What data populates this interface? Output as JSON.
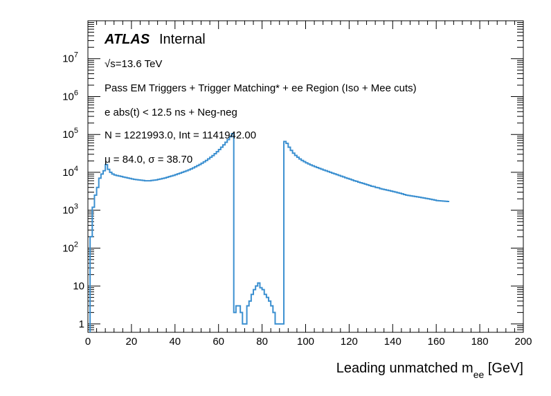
{
  "chart_data": {
    "type": "histogram-step",
    "xlabel_main": "Leading unmatched m",
    "xlabel_sub": "ee",
    "xlabel_unit": " [GeV]",
    "xlim": [
      0,
      200
    ],
    "ylim": [
      0.6,
      100000000
    ],
    "yscale": "log",
    "grid": false,
    "legend": "none",
    "x_ticks": [
      "0",
      "20",
      "40",
      "60",
      "80",
      "100",
      "120",
      "140",
      "160",
      "180",
      "200"
    ],
    "y_ticks": [
      {
        "base": "1",
        "exp": ""
      },
      {
        "base": "10",
        "exp": ""
      },
      {
        "base": "10",
        "exp": "2"
      },
      {
        "base": "10",
        "exp": "3"
      },
      {
        "base": "10",
        "exp": "4"
      },
      {
        "base": "10",
        "exp": "5"
      },
      {
        "base": "10",
        "exp": "6"
      },
      {
        "base": "10",
        "exp": "7"
      }
    ],
    "annotations": {
      "atlas": "ATLAS",
      "internal": "Internal",
      "sqrt": "√s=13.6 TeV",
      "selection": "Pass EM Triggers + Trigger Matching* + ee Region (Iso + Mee cuts)",
      "timing": "e abs(t) < 12.5 ns + Neg-neg",
      "counts": "N = 1221993.0, Int  = 1141942.00",
      "stats": "μ = 84.0, σ = 38.70"
    },
    "series": [
      {
        "color": "#3a8fd0",
        "bin_width": 1,
        "x_start": 1,
        "values": [
          200,
          1200,
          2500,
          4000,
          7000,
          9000,
          11000,
          16000,
          12000,
          10000,
          9000,
          8500,
          8200,
          8000,
          7800,
          7500,
          7300,
          7100,
          6900,
          6700,
          6500,
          6400,
          6300,
          6200,
          6100,
          6000,
          6000,
          6000,
          6100,
          6200,
          6300,
          6500,
          6700,
          6900,
          7100,
          7400,
          7700,
          8000,
          8300,
          8700,
          9100,
          9500,
          10000,
          10500,
          11000,
          11600,
          12300,
          13100,
          14000,
          15000,
          16100,
          17400,
          18900,
          20600,
          22600,
          25000,
          27700,
          31000,
          35000,
          40000,
          46000,
          53000,
          62000,
          73000,
          87000,
          105000,
          2,
          3,
          3,
          2,
          1,
          1,
          3,
          4,
          6,
          8,
          10,
          12,
          9,
          8,
          6,
          5,
          4,
          3,
          2,
          1,
          1,
          1,
          1,
          65000,
          58000,
          46000,
          38000,
          32000,
          28000,
          25000,
          22500,
          20600,
          19100,
          17800,
          16700,
          15700,
          14900,
          14100,
          13400,
          12700,
          12100,
          11500,
          11000,
          10500,
          10000,
          9500,
          9100,
          8700,
          8300,
          7900,
          7600,
          7200,
          6900,
          6600,
          6300,
          6000,
          5800,
          5500,
          5300,
          5100,
          4900,
          4700,
          4500,
          4300,
          4200,
          4000,
          3900,
          3700,
          3600,
          3500,
          3400,
          3300,
          3200,
          3100,
          3000,
          2900,
          2800,
          2700,
          2600,
          2500,
          2450,
          2400,
          2350,
          2300,
          2250,
          2200,
          2150,
          2100,
          2050,
          2000,
          1950,
          1900,
          1850,
          1800,
          1780,
          1760,
          1740,
          1720,
          1700
        ]
      }
    ]
  }
}
